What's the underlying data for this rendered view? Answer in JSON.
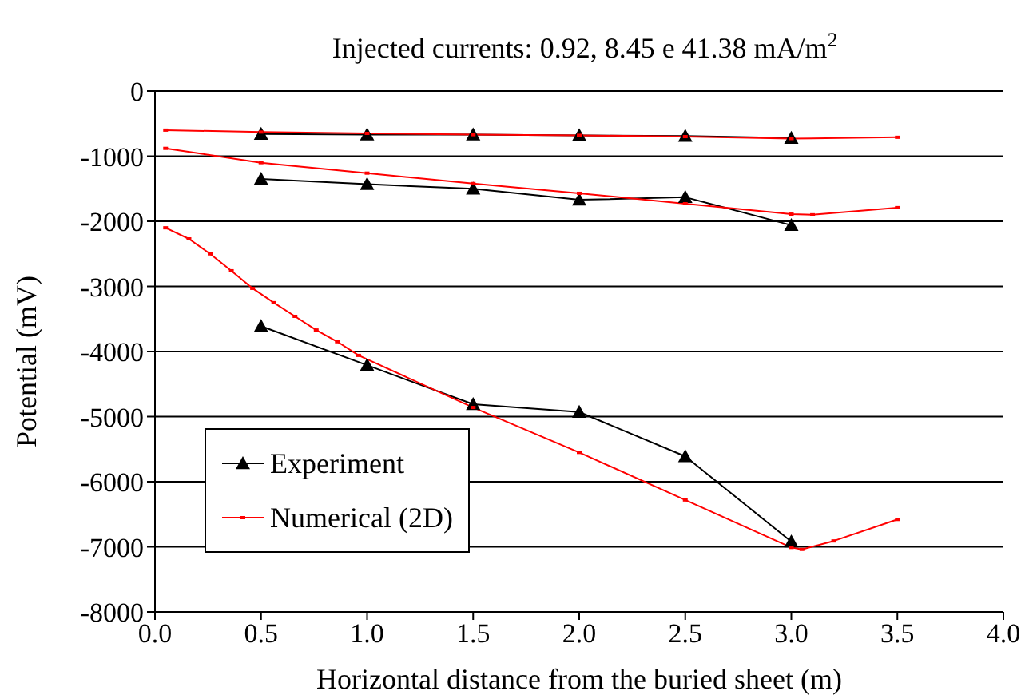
{
  "chart_data": {
    "type": "line",
    "title": "Injected currents: 0.92, 8.45 e 41.38 mA/m$^{2}$",
    "xlabel": "Horizontal distance from the buried sheet (m)",
    "ylabel": "Potential (mV)",
    "xlim": [
      0,
      4
    ],
    "xticks": [
      {
        "value": 0,
        "label": "0.0"
      },
      {
        "value": 0.5,
        "label": "0.5"
      },
      {
        "value": 1,
        "label": "1.0"
      },
      {
        "value": 1.5,
        "label": "1.5"
      },
      {
        "value": 2,
        "label": "2.0"
      },
      {
        "value": 2.5,
        "label": "2.5"
      },
      {
        "value": 3,
        "label": "3.0"
      },
      {
        "value": 3.5,
        "label": "3.5"
      },
      {
        "value": 4,
        "label": "4.0"
      }
    ],
    "ylim": [
      -8000,
      0
    ],
    "yticks": [
      -8000,
      -7000,
      -6000,
      -5000,
      -4000,
      -3000,
      -2000,
      -1000,
      0
    ],
    "grid": "y",
    "legend": "bottom left",
    "series": [
      {
        "name": "Experiment",
        "color": "#000000",
        "marker": "triangle",
        "x": [
          0.5,
          1,
          1.5,
          2,
          2.5,
          3
        ],
        "values": [
          -660,
          -670,
          -670,
          -680,
          -690,
          -720
        ]
      },
      {
        "name": "Numerical (2D)",
        "color": "#ff0000",
        "marker": "square",
        "x": [
          0.05,
          0.5,
          1,
          1.5,
          2,
          2.5,
          3,
          3.5
        ],
        "values": [
          -600,
          -630,
          -650,
          -670,
          -680,
          -700,
          -730,
          -710
        ]
      },
      {
        "color": "#000000",
        "marker": "triangle",
        "x": [
          0.5,
          1,
          1.5,
          2,
          2.5,
          3
        ],
        "values": [
          -1350,
          -1430,
          -1500,
          -1670,
          -1630,
          -2060
        ]
      },
      {
        "color": "#ff0000",
        "marker": "square",
        "x": [
          0.05,
          0.5,
          1,
          1.5,
          2,
          2.5,
          3,
          3.1,
          3.5
        ],
        "values": [
          -880,
          -1100,
          -1260,
          -1420,
          -1570,
          -1730,
          -1890,
          -1900,
          -1790
        ]
      },
      {
        "color": "#000000",
        "marker": "triangle",
        "x": [
          0.5,
          1,
          1.5,
          2,
          2.5,
          3
        ],
        "values": [
          -3610,
          -4210,
          -4810,
          -4930,
          -5610,
          -6920
        ]
      },
      {
        "color": "#ff0000",
        "marker": "square",
        "x": [
          0.05,
          0.16,
          0.26,
          0.36,
          0.46,
          0.56,
          0.66,
          0.76,
          0.86,
          0.96,
          1.5,
          2,
          2.5,
          3,
          3.05,
          3.2,
          3.5
        ],
        "values": [
          -2100,
          -2270,
          -2500,
          -2760,
          -3030,
          -3250,
          -3460,
          -3670,
          -3850,
          -4060,
          -4860,
          -5550,
          -6280,
          -7010,
          -7040,
          -6910,
          -6580
        ]
      }
    ]
  }
}
